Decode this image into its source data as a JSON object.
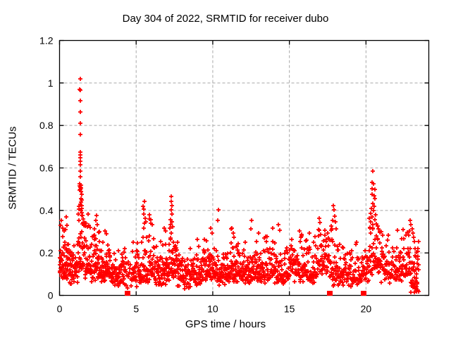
{
  "chart_data": {
    "type": "scatter",
    "title": "Day 304 of 2022, SRMTID for receiver dubo",
    "xlabel": "GPS time / hours",
    "ylabel": "SRMTID / TECUs",
    "xlim": [
      0,
      24.1
    ],
    "ylim": [
      0,
      1.2
    ],
    "xticks": [
      "0",
      "5",
      "10",
      "15",
      "20"
    ],
    "yticks": [
      "0",
      "0.2",
      "0.4",
      "0.6",
      "0.8",
      "1",
      "1.2"
    ],
    "grid": true,
    "legend_position": "none",
    "marker": "plus",
    "colors": {
      "points": "#ff0000",
      "grid": "#a8a8a8",
      "axis": "#000000",
      "text": "#000000",
      "background": "#ffffff"
    },
    "gap_markers": {
      "shape": "filled-square",
      "y": 0.012,
      "x": [
        4.45,
        17.63,
        19.85
      ]
    },
    "outlier_points": [
      [
        1.34,
        1.02
      ],
      [
        1.33,
        0.97
      ],
      [
        1.36,
        0.965
      ],
      [
        1.34,
        0.915
      ],
      [
        1.35,
        0.865
      ],
      [
        1.34,
        0.81
      ],
      [
        1.35,
        0.758
      ],
      [
        1.36,
        0.675
      ],
      [
        1.34,
        0.662
      ],
      [
        1.35,
        0.648
      ],
      [
        1.36,
        0.632
      ],
      [
        1.35,
        0.615
      ],
      [
        1.37,
        0.585
      ],
      [
        1.34,
        0.56
      ],
      [
        1.3,
        0.525
      ],
      [
        1.33,
        0.517
      ],
      [
        1.36,
        0.51
      ],
      [
        1.39,
        0.505
      ],
      [
        1.42,
        0.52
      ],
      [
        1.35,
        0.5
      ],
      [
        1.31,
        0.494
      ],
      [
        1.4,
        0.488
      ],
      [
        1.43,
        0.475
      ],
      [
        1.38,
        0.455
      ],
      [
        1.45,
        0.448
      ],
      [
        1.41,
        0.44
      ],
      [
        1.37,
        0.43
      ],
      [
        1.44,
        0.422
      ],
      [
        1.47,
        0.41
      ],
      [
        1.4,
        0.4
      ],
      [
        1.46,
        0.39
      ],
      [
        1.49,
        0.375
      ],
      [
        1.53,
        0.36
      ],
      [
        1.56,
        0.344
      ],
      [
        1.25,
        0.42
      ],
      [
        1.22,
        0.382
      ],
      [
        1.27,
        0.352
      ],
      [
        1.6,
        0.33
      ],
      [
        1.64,
        0.342
      ],
      [
        1.68,
        0.326
      ],
      [
        0.05,
        0.33
      ],
      [
        0.12,
        0.352
      ],
      [
        0.2,
        0.315
      ],
      [
        0.3,
        0.302
      ],
      [
        0.38,
        0.31
      ],
      [
        0.42,
        0.368
      ],
      [
        0.47,
        0.33
      ],
      [
        2.28,
        0.312
      ],
      [
        2.35,
        0.352
      ],
      [
        2.45,
        0.332
      ],
      [
        2.95,
        0.302
      ],
      [
        3.05,
        0.29
      ],
      [
        5.45,
        0.42
      ],
      [
        5.52,
        0.443
      ],
      [
        5.5,
        0.405
      ],
      [
        5.48,
        0.382
      ],
      [
        5.58,
        0.362
      ],
      [
        5.62,
        0.345
      ],
      [
        5.88,
        0.378
      ],
      [
        5.95,
        0.358
      ],
      [
        6.05,
        0.332
      ],
      [
        6.85,
        0.316
      ],
      [
        6.9,
        0.302
      ],
      [
        7.23,
        0.332
      ],
      [
        7.26,
        0.356
      ],
      [
        7.28,
        0.465
      ],
      [
        7.3,
        0.443
      ],
      [
        7.33,
        0.422
      ],
      [
        7.29,
        0.402
      ],
      [
        7.35,
        0.382
      ],
      [
        7.32,
        0.348
      ],
      [
        7.4,
        0.322
      ],
      [
        9.85,
        0.315
      ],
      [
        9.95,
        0.295
      ],
      [
        10.35,
        0.402
      ],
      [
        10.32,
        0.352
      ],
      [
        11.2,
        0.312
      ],
      [
        11.35,
        0.295
      ],
      [
        12.55,
        0.352
      ],
      [
        12.5,
        0.312
      ],
      [
        13.0,
        0.295
      ],
      [
        13.9,
        0.315
      ],
      [
        14.3,
        0.332
      ],
      [
        14.35,
        0.305
      ],
      [
        15.65,
        0.302
      ],
      [
        15.8,
        0.288
      ],
      [
        16.3,
        0.295
      ],
      [
        16.95,
        0.362
      ],
      [
        17.0,
        0.342
      ],
      [
        17.3,
        0.305
      ],
      [
        17.75,
        0.325
      ],
      [
        17.8,
        0.352
      ],
      [
        17.85,
        0.422
      ],
      [
        17.9,
        0.402
      ],
      [
        17.95,
        0.372
      ],
      [
        18.0,
        0.345
      ],
      [
        18.05,
        0.312
      ],
      [
        20.45,
        0.585
      ],
      [
        20.4,
        0.532
      ],
      [
        20.5,
        0.525
      ],
      [
        20.42,
        0.502
      ],
      [
        20.56,
        0.498
      ],
      [
        20.38,
        0.475
      ],
      [
        20.52,
        0.468
      ],
      [
        20.6,
        0.455
      ],
      [
        20.45,
        0.432
      ],
      [
        20.55,
        0.42
      ],
      [
        20.35,
        0.41
      ],
      [
        20.5,
        0.4
      ],
      [
        20.3,
        0.386
      ],
      [
        20.62,
        0.378
      ],
      [
        20.4,
        0.37
      ],
      [
        20.58,
        0.355
      ],
      [
        20.32,
        0.345
      ],
      [
        20.68,
        0.338
      ],
      [
        20.75,
        0.328
      ],
      [
        20.25,
        0.32
      ],
      [
        20.82,
        0.312
      ],
      [
        20.9,
        0.3
      ],
      [
        22.8,
        0.282
      ],
      [
        22.85,
        0.302
      ],
      [
        22.9,
        0.352
      ],
      [
        22.95,
        0.332
      ],
      [
        23.0,
        0.312
      ],
      [
        23.05,
        0.292
      ],
      [
        23.1,
        0.272
      ],
      [
        23.15,
        0.252
      ],
      [
        23.2,
        0.222
      ],
      [
        23.25,
        0.182
      ],
      [
        23.18,
        0.152
      ],
      [
        23.26,
        0.122
      ],
      [
        23.3,
        0.102
      ],
      [
        23.28,
        0.082
      ],
      [
        23.32,
        0.062
      ],
      [
        23.3,
        0.042
      ],
      [
        23.35,
        0.026
      ],
      [
        23.36,
        0.152
      ],
      [
        23.4,
        0.185
      ],
      [
        23.38,
        0.222
      ],
      [
        23.42,
        0.252
      ]
    ],
    "noise_band": {
      "seed": 304,
      "model": "y = base + amp*r1*r2 + 0.05*r3 - 0.02, clipped at 0.012",
      "segments": [
        [
          0.0,
          0.6,
          55,
          0.09,
          0.26
        ],
        [
          0.6,
          1.2,
          50,
          0.07,
          0.2
        ],
        [
          1.2,
          1.9,
          60,
          0.1,
          0.38
        ],
        [
          1.9,
          2.6,
          60,
          0.08,
          0.28
        ],
        [
          2.6,
          3.3,
          58,
          0.08,
          0.24
        ],
        [
          3.3,
          4.3,
          70,
          0.06,
          0.2
        ],
        [
          4.3,
          4.75,
          16,
          0.05,
          0.14
        ],
        [
          4.75,
          5.4,
          50,
          0.06,
          0.22
        ],
        [
          5.4,
          6.2,
          60,
          0.08,
          0.3
        ],
        [
          6.2,
          7.0,
          58,
          0.06,
          0.22
        ],
        [
          7.0,
          7.7,
          58,
          0.09,
          0.28
        ],
        [
          7.7,
          8.6,
          62,
          0.05,
          0.18
        ],
        [
          8.6,
          9.4,
          58,
          0.06,
          0.2
        ],
        [
          9.4,
          10.3,
          66,
          0.08,
          0.23
        ],
        [
          10.3,
          11.0,
          55,
          0.06,
          0.2
        ],
        [
          11.0,
          11.7,
          55,
          0.08,
          0.23
        ],
        [
          11.7,
          12.4,
          55,
          0.06,
          0.2
        ],
        [
          12.4,
          13.3,
          62,
          0.07,
          0.21
        ],
        [
          13.3,
          14.1,
          58,
          0.07,
          0.24
        ],
        [
          14.1,
          15.0,
          62,
          0.06,
          0.2
        ],
        [
          15.0,
          15.9,
          62,
          0.08,
          0.22
        ],
        [
          15.9,
          16.8,
          62,
          0.07,
          0.23
        ],
        [
          16.8,
          17.8,
          66,
          0.1,
          0.26
        ],
        [
          17.8,
          18.6,
          55,
          0.06,
          0.2
        ],
        [
          18.6,
          19.85,
          75,
          0.06,
          0.19
        ],
        [
          19.85,
          20.2,
          20,
          0.07,
          0.2
        ],
        [
          20.2,
          21.0,
          62,
          0.11,
          0.28
        ],
        [
          21.0,
          21.9,
          58,
          0.07,
          0.22
        ],
        [
          21.9,
          22.9,
          70,
          0.08,
          0.26
        ],
        [
          22.9,
          23.45,
          40,
          0.03,
          0.24
        ]
      ]
    }
  }
}
